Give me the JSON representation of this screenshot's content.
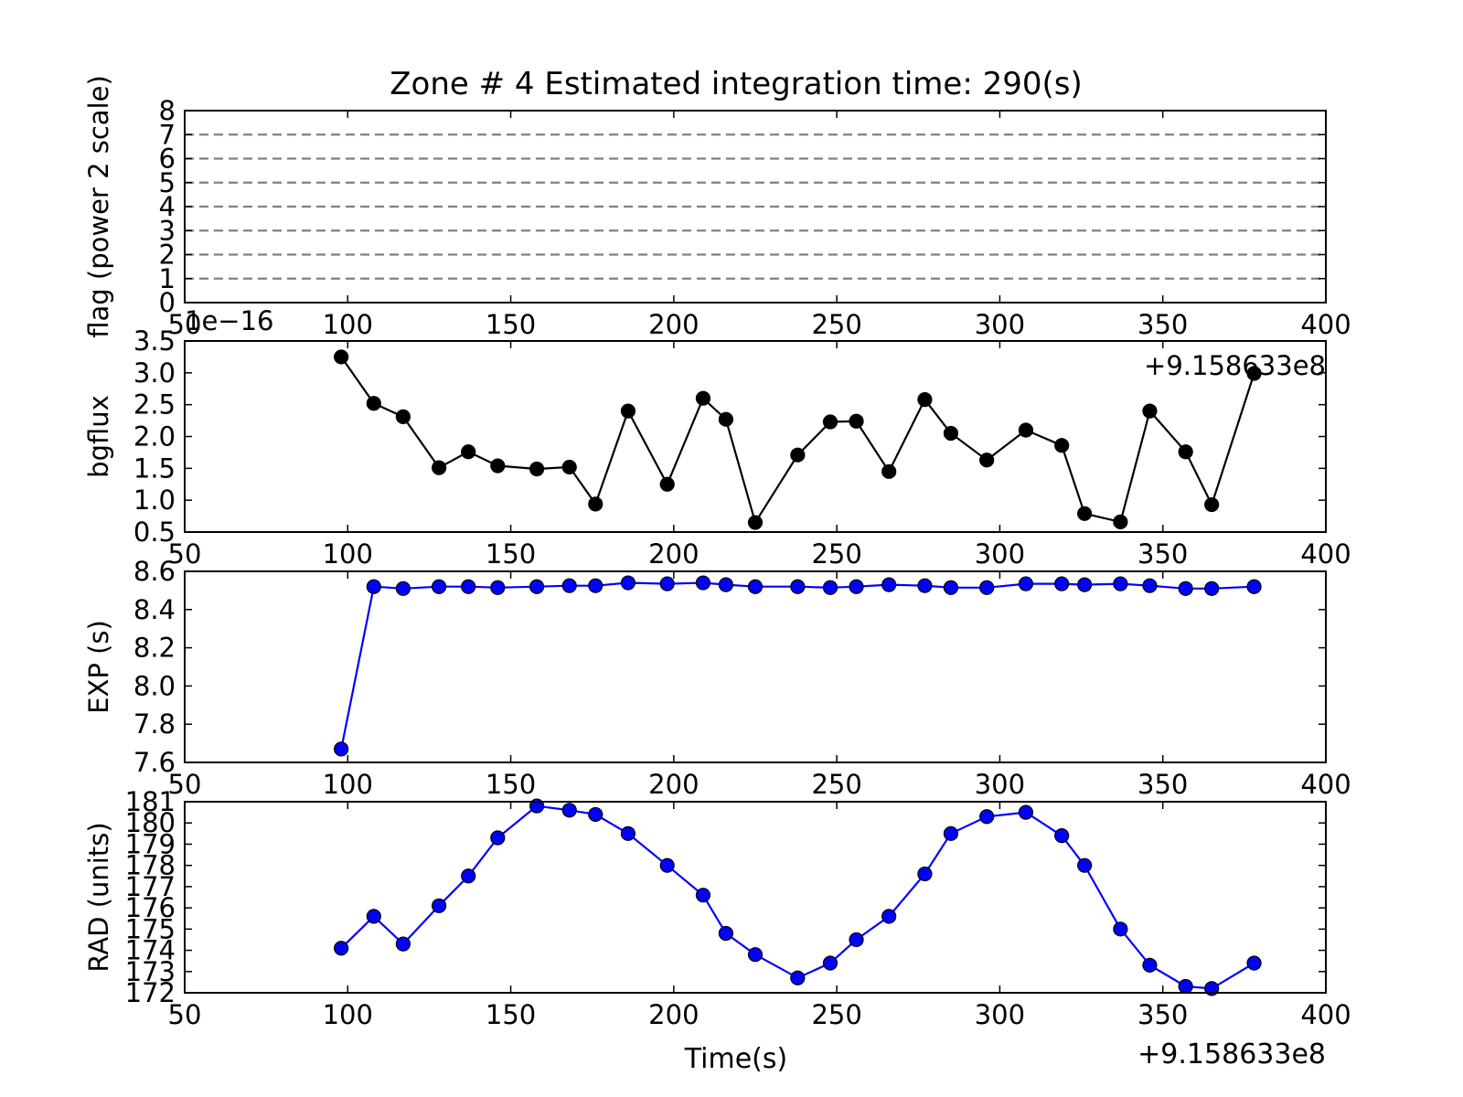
{
  "figure": {
    "title": "Zone # 4 Estimated integration time: 290(s)",
    "xlabel": "Time(s)",
    "x_offset_label": "+9.158633e8"
  },
  "chart_data": [
    {
      "type": "line",
      "id": "flag",
      "ylabel": "flag (power 2 scale)",
      "xlim": [
        50,
        400
      ],
      "ylim": [
        0,
        8
      ],
      "yticks": [
        "0",
        "1",
        "2",
        "3",
        "4",
        "5",
        "6",
        "7",
        "8"
      ],
      "xticks": [
        "50",
        "100",
        "150",
        "200",
        "250",
        "300",
        "350",
        "400"
      ],
      "hlines": [
        1,
        2,
        3,
        4,
        5,
        6,
        7
      ],
      "hline_color": "#808080",
      "series": []
    },
    {
      "type": "line",
      "id": "bgflux",
      "ylabel": "bgflux",
      "y_scale_label": "1e−16",
      "x_offset_label": "+9.158633e8",
      "xlim": [
        50,
        400
      ],
      "ylim": [
        0.5,
        3.5
      ],
      "yticks": [
        "0.5",
        "1.0",
        "1.5",
        "2.0",
        "2.5",
        "3.0",
        "3.5"
      ],
      "xticks": [
        "50",
        "100",
        "150",
        "200",
        "250",
        "300",
        "350",
        "400"
      ],
      "color": "#000000",
      "series": [
        {
          "x": [
            98,
            108,
            117,
            128,
            137,
            146,
            158,
            168,
            176,
            186,
            198,
            209,
            216,
            225,
            238,
            248,
            256,
            266,
            277,
            285,
            296,
            308,
            319,
            326,
            337,
            346,
            357,
            365,
            378
          ],
          "y": [
            3.25,
            2.52,
            2.31,
            1.51,
            1.76,
            1.54,
            1.49,
            1.52,
            0.94,
            2.4,
            1.25,
            2.6,
            2.27,
            0.65,
            1.71,
            2.23,
            2.24,
            1.45,
            2.58,
            2.05,
            1.63,
            2.1,
            1.86,
            0.79,
            0.66,
            2.4,
            1.76,
            0.93,
            2.99
          ]
        }
      ]
    },
    {
      "type": "line",
      "id": "exp",
      "ylabel": "EXP (s)",
      "xlim": [
        50,
        400
      ],
      "ylim": [
        7.6,
        8.6
      ],
      "yticks": [
        "7.6",
        "7.8",
        "8.0",
        "8.2",
        "8.4",
        "8.6"
      ],
      "xticks": [
        "50",
        "100",
        "150",
        "200",
        "250",
        "300",
        "350",
        "400"
      ],
      "color": "#0000ff",
      "series": [
        {
          "x": [
            98,
            108,
            117,
            128,
            137,
            146,
            158,
            168,
            176,
            186,
            198,
            209,
            216,
            225,
            238,
            248,
            256,
            266,
            277,
            285,
            296,
            308,
            319,
            326,
            337,
            346,
            357,
            365,
            378
          ],
          "y": [
            7.67,
            8.52,
            8.51,
            8.52,
            8.52,
            8.515,
            8.52,
            8.525,
            8.525,
            8.54,
            8.535,
            8.54,
            8.53,
            8.52,
            8.52,
            8.515,
            8.52,
            8.53,
            8.525,
            8.515,
            8.515,
            8.535,
            8.535,
            8.53,
            8.535,
            8.525,
            8.51,
            8.51,
            8.52
          ]
        }
      ]
    },
    {
      "type": "line",
      "id": "rad",
      "ylabel": "RAD (units)",
      "x_offset_label": "+9.158633e8",
      "xlim": [
        50,
        400
      ],
      "ylim": [
        172,
        181
      ],
      "yticks": [
        "172",
        "173",
        "174",
        "175",
        "176",
        "177",
        "178",
        "179",
        "180",
        "181"
      ],
      "xticks": [
        "50",
        "100",
        "150",
        "200",
        "250",
        "300",
        "350",
        "400"
      ],
      "color": "#0000ff",
      "series": [
        {
          "x": [
            98,
            108,
            117,
            128,
            137,
            146,
            158,
            168,
            176,
            186,
            198,
            209,
            216,
            225,
            238,
            248,
            256,
            266,
            277,
            285,
            296,
            308,
            319,
            326,
            337,
            346,
            357,
            365,
            378
          ],
          "y": [
            174.1,
            175.6,
            174.3,
            176.1,
            177.5,
            179.3,
            180.8,
            180.6,
            180.4,
            179.5,
            178.0,
            176.6,
            174.8,
            173.8,
            172.7,
            173.4,
            174.5,
            175.6,
            177.6,
            179.5,
            180.3,
            180.5,
            179.4,
            178.0,
            175.0,
            173.3,
            172.3,
            172.2,
            173.4
          ]
        }
      ]
    }
  ]
}
